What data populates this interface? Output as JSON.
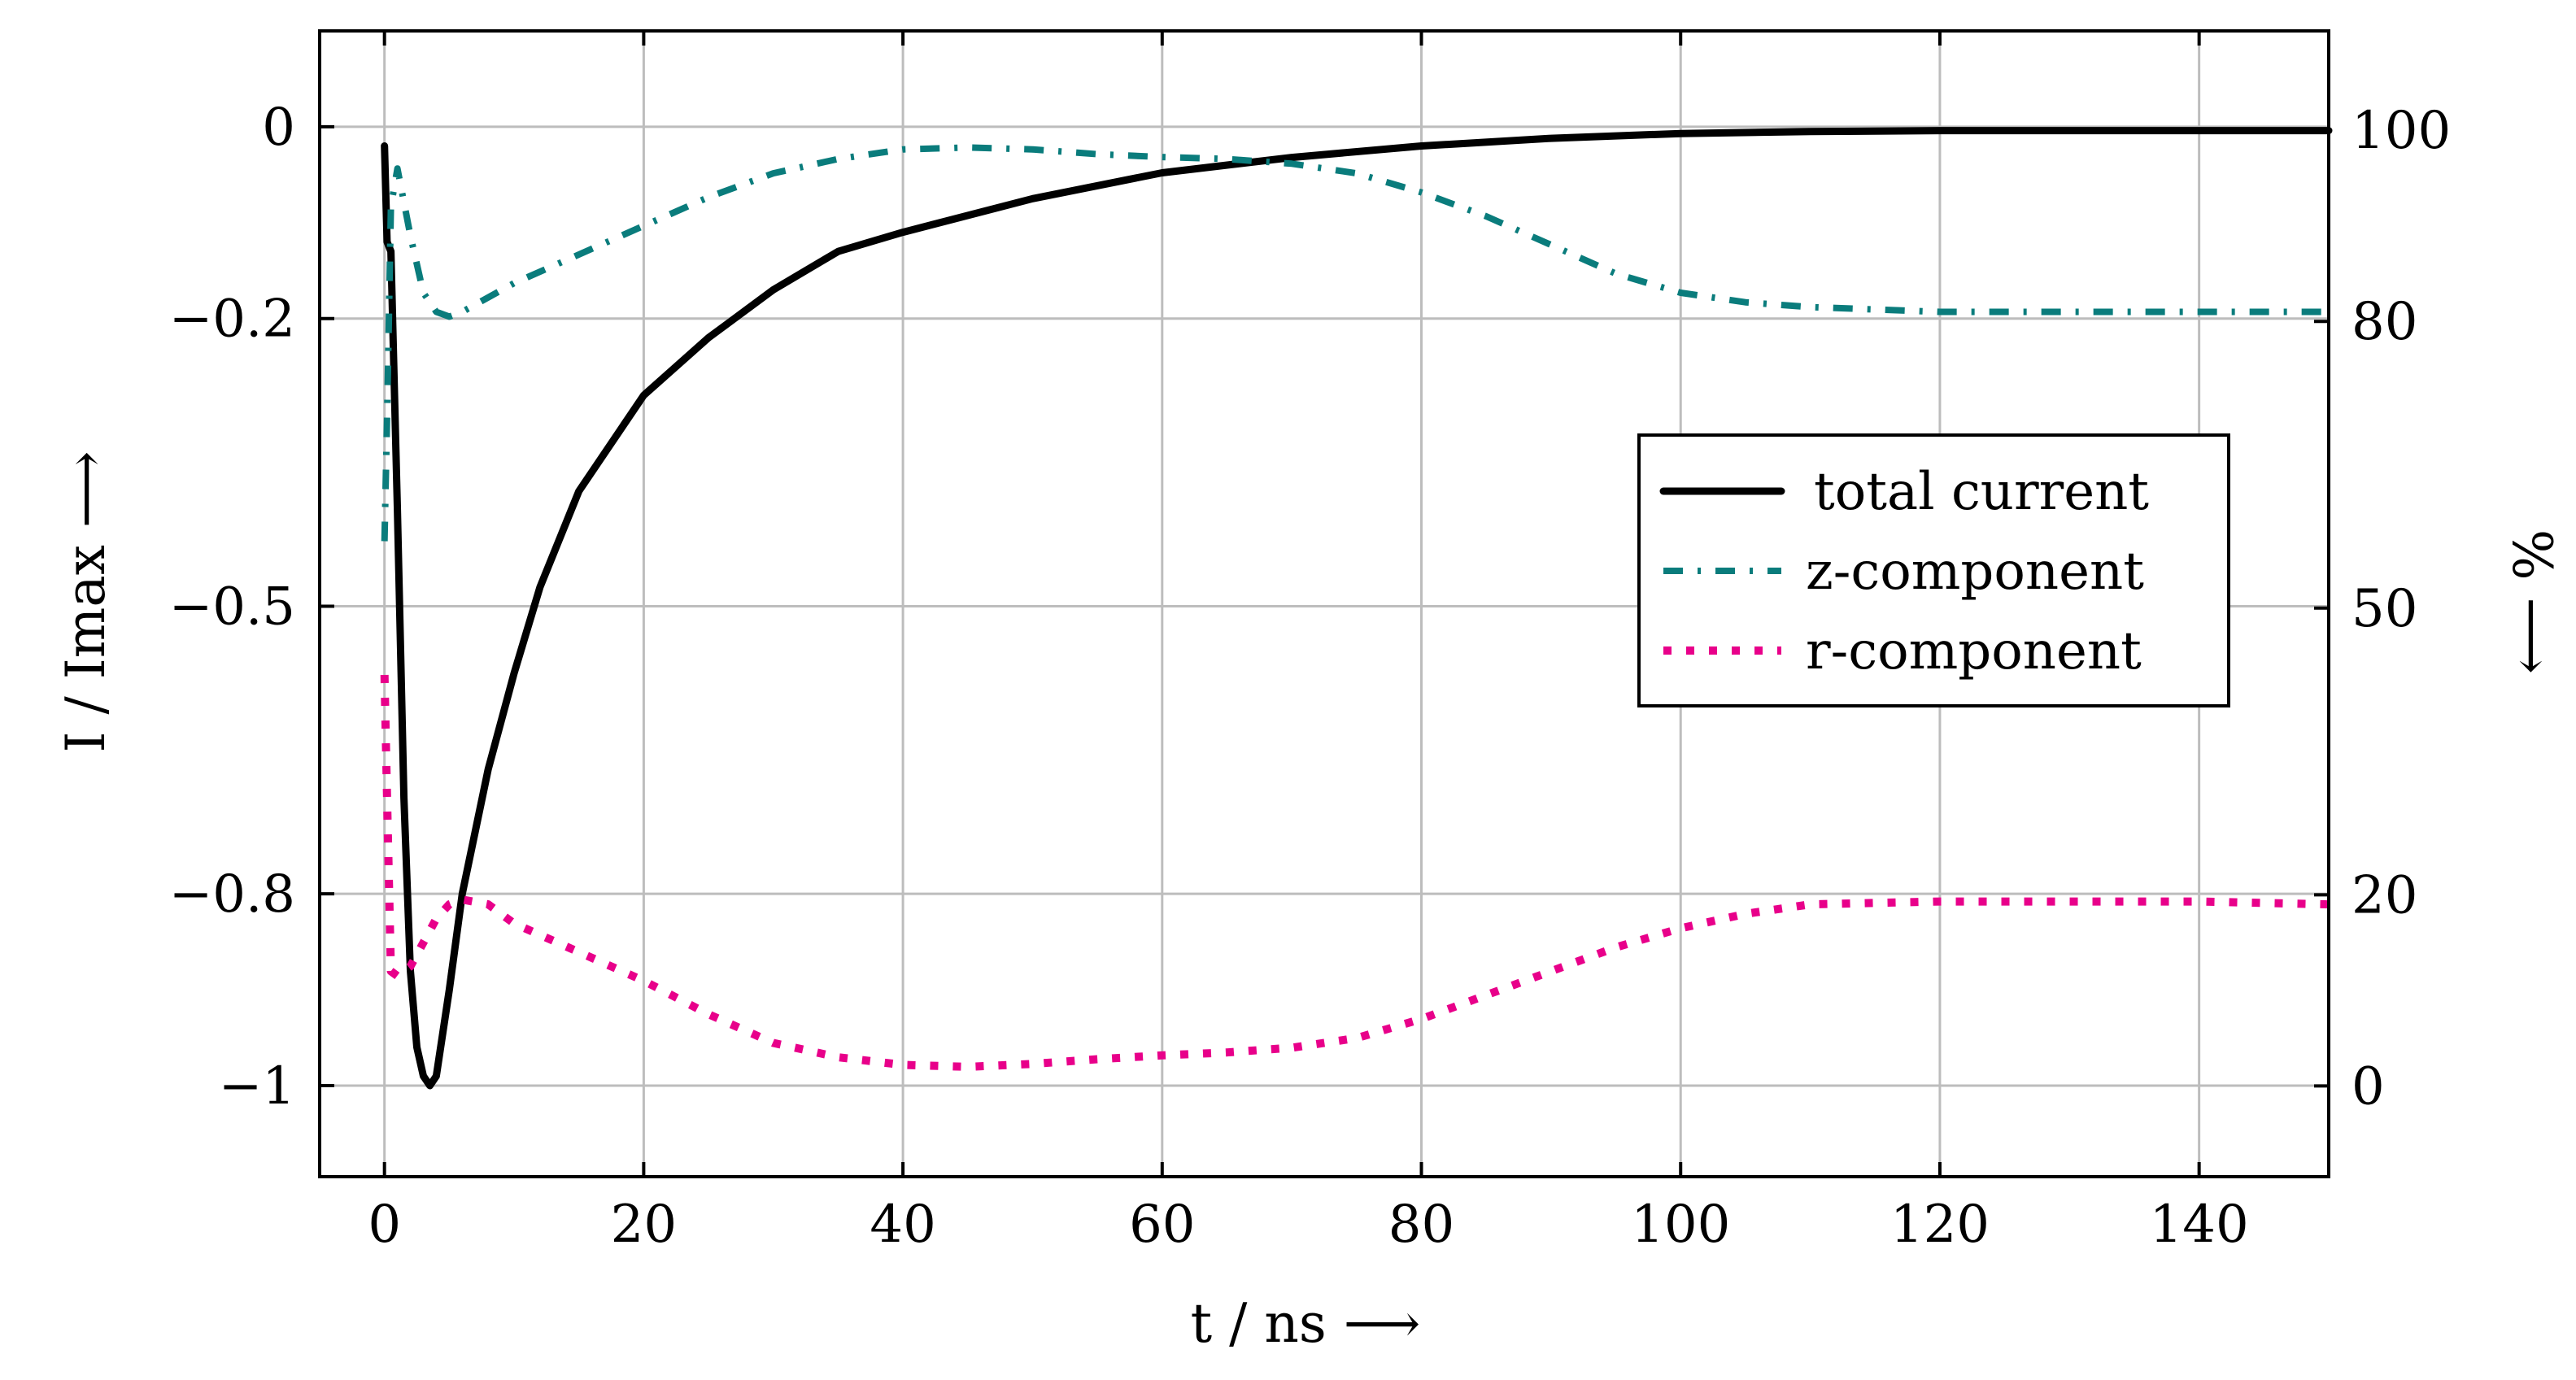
{
  "chart_data": {
    "type": "line",
    "xlabel": "t / ns ⟶",
    "ylabel": "I / Imax ⟶",
    "y2label": "% ⟶",
    "xlim": [
      -5,
      150
    ],
    "ylim": [
      -1.095,
      0.1
    ],
    "y2lim": [
      -9.5,
      110.4
    ],
    "grid": true,
    "legend_position": "center-right",
    "x_ticks": [
      0,
      20,
      40,
      60,
      80,
      100,
      120,
      140
    ],
    "x_tick_labels": [
      "0",
      "20",
      "40",
      "60",
      "80",
      "100",
      "120",
      "140"
    ],
    "y_ticks": [
      0,
      -0.2,
      -0.5,
      -0.8,
      -1
    ],
    "y_tick_labels": [
      "0",
      "−0.2",
      "−0.5",
      "−0.8",
      "−1"
    ],
    "y2_ticks": [
      100,
      80,
      50,
      20,
      0
    ],
    "y2_tick_labels": [
      "100",
      "80",
      "50",
      "20",
      "0"
    ],
    "series": [
      {
        "name": "total current",
        "axis": "left",
        "color": "#000000",
        "style": "solid",
        "x": [
          0,
          0.2,
          0.5,
          1,
          1.5,
          2,
          2.5,
          3,
          3.5,
          4,
          5,
          6,
          8,
          10,
          12,
          15,
          20,
          25,
          30,
          35,
          40,
          50,
          60,
          70,
          80,
          90,
          100,
          110,
          120,
          130,
          140,
          150
        ],
        "y": [
          -0.02,
          -0.12,
          -0.13,
          -0.4,
          -0.7,
          -0.88,
          -0.96,
          -0.99,
          -1.0,
          -0.99,
          -0.9,
          -0.8,
          -0.67,
          -0.57,
          -0.48,
          -0.38,
          -0.28,
          -0.22,
          -0.17,
          -0.13,
          -0.11,
          -0.075,
          -0.048,
          -0.032,
          -0.02,
          -0.012,
          -0.007,
          -0.005,
          -0.004,
          -0.004,
          -0.004,
          -0.004
        ]
      },
      {
        "name": "z-component",
        "axis": "right",
        "color": "#0a7c7c",
        "style": "dash-dot",
        "x": [
          0,
          0.2,
          0.5,
          1,
          2,
          3,
          4,
          5,
          6,
          10,
          15,
          20,
          25,
          30,
          35,
          40,
          45,
          50,
          55,
          60,
          65,
          70,
          75,
          80,
          85,
          90,
          95,
          100,
          105,
          110,
          120,
          130,
          140,
          150
        ],
        "y": [
          57,
          70,
          92,
          96,
          89,
          83,
          81,
          80.5,
          81,
          84,
          87,
          90,
          93,
          95.5,
          97,
          98,
          98.2,
          98,
          97.5,
          97.2,
          97,
          96.5,
          95.5,
          93.5,
          91,
          88,
          85,
          83,
          82,
          81.5,
          81,
          81,
          81,
          81
        ]
      },
      {
        "name": "r-component",
        "axis": "right",
        "color": "#e8008a",
        "style": "dotted",
        "x": [
          0,
          0.2,
          0.5,
          1,
          2,
          3,
          4,
          5,
          6,
          8,
          10,
          15,
          20,
          25,
          30,
          35,
          40,
          45,
          50,
          55,
          60,
          65,
          70,
          75,
          80,
          85,
          90,
          95,
          100,
          105,
          110,
          120,
          130,
          140,
          150
        ],
        "y": [
          43,
          30,
          12,
          11.5,
          12.5,
          15,
          17.5,
          19,
          19.5,
          19,
          17,
          14,
          11,
          7.5,
          4.5,
          3,
          2.2,
          2,
          2.3,
          2.8,
          3.2,
          3.5,
          4,
          5,
          7,
          9.5,
          12,
          14.5,
          16.5,
          18,
          19,
          19.3,
          19.3,
          19.3,
          19
        ]
      }
    ]
  },
  "legend": {
    "items": [
      "total current",
      "z-component",
      "r-component"
    ]
  }
}
